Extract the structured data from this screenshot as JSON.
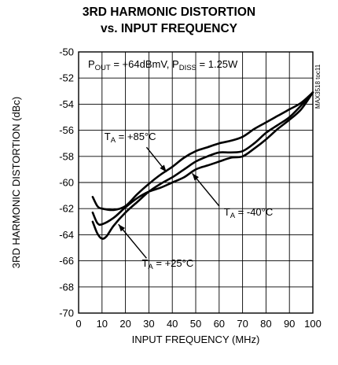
{
  "chart_data": {
    "type": "line",
    "title": "3RD HARMONIC DISTORTION",
    "subtitle": "vs. INPUT FREQUENCY",
    "xlabel": "INPUT FREQUENCY (MHz)",
    "ylabel": "3RD HARMONIC DISTORTION (dBc)",
    "xlim": [
      0,
      100
    ],
    "ylim": [
      -70,
      -50
    ],
    "xticks": [
      0,
      10,
      20,
      30,
      40,
      50,
      60,
      70,
      80,
      90,
      100
    ],
    "yticks": [
      -50,
      -52,
      -54,
      -56,
      -58,
      -60,
      -62,
      -64,
      -66,
      -68,
      -70
    ],
    "grid": true,
    "conditions": {
      "pout_main": "P",
      "pout_sub": "OUT",
      "pout_rest": " = +64dBmV, P",
      "pdiss_sub": "DISS",
      "pdiss_rest": " = 1.25W"
    },
    "side_label": "MAX3518 toc11",
    "series": [
      {
        "name_main": "T",
        "name_sub": "A",
        "name_rest": " = +85°C",
        "x": [
          6,
          8,
          10,
          15,
          20,
          25,
          30,
          35,
          40,
          45,
          50,
          55,
          60,
          65,
          70,
          75,
          80,
          85,
          90,
          95,
          100
        ],
        "y": [
          -61.1,
          -61.8,
          -62.0,
          -62.1,
          -61.8,
          -60.9,
          -60.1,
          -59.4,
          -58.8,
          -58.1,
          -57.6,
          -57.3,
          -57.0,
          -56.8,
          -56.5,
          -55.9,
          -55.4,
          -54.9,
          -54.4,
          -53.9,
          -53.1
        ]
      },
      {
        "name_main": "T",
        "name_sub": "A",
        "name_rest": " = -40°C",
        "x": [
          6,
          8,
          10,
          15,
          20,
          25,
          30,
          35,
          40,
          45,
          50,
          55,
          60,
          65,
          70,
          75,
          80,
          85,
          90,
          95,
          100
        ],
        "y": [
          -62.3,
          -63.1,
          -63.2,
          -62.7,
          -61.9,
          -61.2,
          -60.7,
          -60.4,
          -60.0,
          -59.6,
          -59.0,
          -58.7,
          -58.4,
          -58.1,
          -58.0,
          -57.4,
          -56.7,
          -55.9,
          -55.2,
          -54.4,
          -53.1
        ]
      },
      {
        "name_main": "T",
        "name_sub": "A",
        "name_rest": " = +25°C",
        "x": [
          6,
          8,
          10,
          12,
          15,
          20,
          25,
          30,
          35,
          40,
          45,
          50,
          55,
          60,
          65,
          70,
          75,
          80,
          85,
          90,
          95,
          100
        ],
        "y": [
          -63.0,
          -63.9,
          -64.3,
          -64.1,
          -63.3,
          -62.3,
          -61.5,
          -60.7,
          -60.1,
          -59.6,
          -59.0,
          -58.4,
          -58.0,
          -57.7,
          -57.7,
          -57.6,
          -57.0,
          -56.2,
          -55.6,
          -55.0,
          -54.1,
          -53.1
        ]
      }
    ]
  }
}
